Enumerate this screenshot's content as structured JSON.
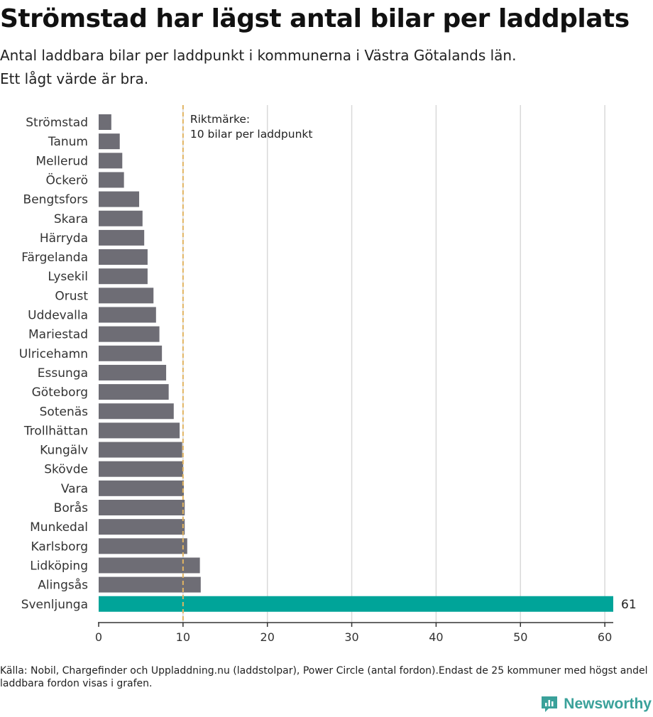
{
  "header": {
    "title": "Strömstad har lägst antal bilar per laddplats",
    "subtitle_line1": "Antal laddbara bilar per laddpunkt i kommunerna i Västra Götalands län.",
    "subtitle_line2": "Ett lågt värde är bra."
  },
  "footer": {
    "source": "Källa: Nobil, Chargefinder och Uppladdning.nu (laddstolpar), Power Circle (antal fordon).Endast de 25 kommuner med högst andel laddbara fordon visas i grafen.",
    "brand": "Newsworthy"
  },
  "colors": {
    "bar": "#6e6d75",
    "highlight": "#00a499",
    "reference_line": "#e2b562",
    "grid": "#d9d9d9",
    "axis": "#333333"
  },
  "chart_data": {
    "type": "bar",
    "orientation": "horizontal",
    "categories": [
      "Strömstad",
      "Tanum",
      "Mellerud",
      "Öckerö",
      "Bengtsfors",
      "Skara",
      "Härryda",
      "Färgelanda",
      "Lysekil",
      "Orust",
      "Uddevalla",
      "Mariestad",
      "Ulricehamn",
      "Essunga",
      "Göteborg",
      "Sotenäs",
      "Trollhättan",
      "Kungälv",
      "Skövde",
      "Vara",
      "Borås",
      "Munkedal",
      "Karlsborg",
      "Lidköping",
      "Alingsås",
      "Svenljunga"
    ],
    "values": [
      1.5,
      2.5,
      2.8,
      3.0,
      4.8,
      5.2,
      5.4,
      5.8,
      5.8,
      6.5,
      6.8,
      7.2,
      7.5,
      8.0,
      8.3,
      8.9,
      9.6,
      9.9,
      10.0,
      10.1,
      10.2,
      10.2,
      10.5,
      12.0,
      12.1,
      61
    ],
    "highlight_index": 25,
    "value_labels": [
      {
        "index": 25,
        "text": "61"
      }
    ],
    "xlim": [
      0,
      61
    ],
    "xticks": [
      0,
      10,
      20,
      30,
      40,
      50,
      60
    ],
    "grid": true,
    "xlabel": "",
    "ylabel": "",
    "reference": {
      "value": 10,
      "label_line1": "Riktmärke:",
      "label_line2": "10 bilar per laddpunkt"
    }
  }
}
